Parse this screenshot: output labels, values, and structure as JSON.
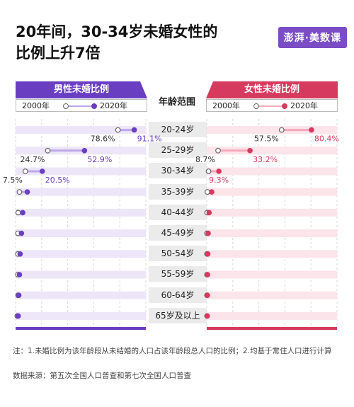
{
  "title_line1": "20年间，30-34岁未婚女性的",
  "title_line2": "比例上升7倍",
  "logo": "澎湃·美数课",
  "age_header": "年龄范围",
  "note": "注：1.未婚比例为该年龄段从未结婚的人口占该年龄段总人口的比例；2.均基于常住人口进行计算",
  "source": "数据来源：第五次全国人口普查和第七次全国人口普查",
  "colors": {
    "male": "#6a3ec0",
    "male_light": "#bfa6ea",
    "male_row": "#ece6f8",
    "female": "#d63a5e",
    "female_light": "#f3a9bb",
    "female_row": "#fbe4ea"
  },
  "chart_data": [
    {
      "type": "dot",
      "title": "男性未婚比例",
      "legend": [
        "2000年",
        "2020年"
      ],
      "categories": [
        "20-24岁",
        "25-29岁",
        "30-34岁",
        "35-39岁",
        "40-44岁",
        "45-49岁",
        "50-54岁",
        "55-59岁",
        "60-64岁",
        "65岁及以上"
      ],
      "series": [
        {
          "name": "2000年",
          "values": [
            78.6,
            24.7,
            7.5,
            3.0,
            2.0,
            1.8,
            1.8,
            1.8,
            1.9,
            1.3
          ]
        },
        {
          "name": "2020年",
          "values": [
            91.1,
            52.9,
            20.5,
            9.0,
            5.5,
            4.5,
            3.5,
            3.0,
            2.5,
            2.0
          ]
        }
      ],
      "data_labels": {
        "2000年": [
          "78.6%",
          "24.7%",
          "7.5%"
        ],
        "2020年": [
          "91.1%",
          "52.9%",
          "20.5%"
        ]
      },
      "xlim": [
        0,
        100
      ],
      "xticks": [
        "0",
        "20%",
        "40%",
        "60%",
        "80%",
        "100%"
      ]
    },
    {
      "type": "dot",
      "title": "女性未婚比例",
      "legend": [
        "2000年",
        "2020年"
      ],
      "categories": [
        "20-24岁",
        "25-29岁",
        "30-34岁",
        "35-39岁",
        "40-44岁",
        "45-49岁",
        "50-54岁",
        "55-59岁",
        "60-64岁",
        "65岁及以上"
      ],
      "series": [
        {
          "name": "2000年",
          "values": [
            57.5,
            8.7,
            1.4,
            0.5,
            0.3,
            0.2,
            0.2,
            0.2,
            0.2,
            0.2
          ]
        },
        {
          "name": "2020年",
          "values": [
            80.4,
            33.2,
            9.3,
            3.8,
            1.8,
            1.1,
            0.8,
            0.6,
            0.5,
            0.4
          ]
        }
      ],
      "data_labels": {
        "2000年": [
          "57.5%",
          "8.7%"
        ],
        "2020年": [
          "80.4%",
          "33.2%",
          "9.3%"
        ]
      },
      "xlim": [
        0,
        100
      ],
      "xticks": [
        "0",
        "20%",
        "40%",
        "60%",
        "80%",
        "100%"
      ]
    }
  ]
}
